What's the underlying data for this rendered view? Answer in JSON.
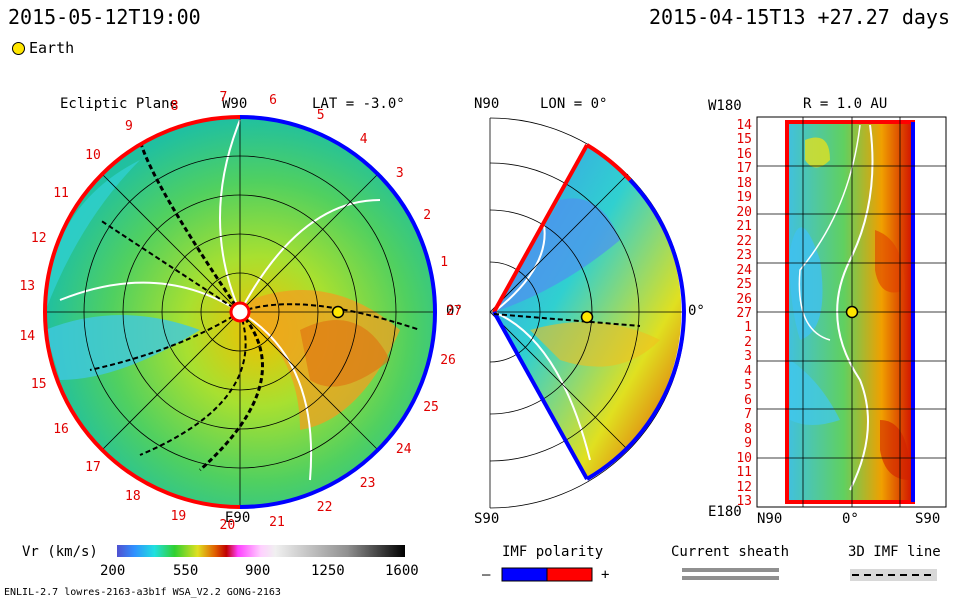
{
  "header": {
    "sim_time": "2015-05-12T19:00",
    "ref_time": "2015-04-15T13 +27.27 days"
  },
  "legend": {
    "earth_label": "Earth"
  },
  "panels": {
    "ecliptic": {
      "title": "Ecliptic Plane",
      "top_label": "W90",
      "bottom_label": "E90",
      "lat_label": "LAT = -3.0°",
      "zero_label": "0°",
      "carrington_ticks": [
        "20",
        "21",
        "22",
        "23",
        "24",
        "25",
        "26",
        "27",
        "1",
        "2",
        "3",
        "4",
        "5",
        "6",
        "7",
        "8",
        "9",
        "10",
        "11",
        "12",
        "13",
        "14",
        "15",
        "16",
        "17",
        "18",
        "19"
      ]
    },
    "meridional": {
      "top_label": "N90",
      "bottom_label": "S90",
      "lon_label": "LON = 0°",
      "zero_label": "0°"
    },
    "radial": {
      "title": "R = 1.0 AU",
      "top_left": "W180",
      "bottom_left": "E180",
      "x_ticks": [
        "N90",
        "0°",
        "S90"
      ],
      "rotation_ticks": [
        "14",
        "15",
        "16",
        "17",
        "18",
        "19",
        "20",
        "21",
        "22",
        "23",
        "24",
        "25",
        "26",
        "27",
        "1",
        "2",
        "3",
        "4",
        "5",
        "6",
        "7",
        "8",
        "9",
        "10",
        "11",
        "12",
        "13"
      ]
    }
  },
  "colorbar": {
    "label": "Vr (km/s)",
    "ticks": [
      "200",
      "550",
      "900",
      "1250",
      "1600"
    ],
    "range": [
      200,
      1600
    ]
  },
  "imf": {
    "title": "IMF polarity",
    "minus": "–",
    "plus": "+",
    "colors": {
      "negative": "#0000ff",
      "positive": "#ff0000"
    }
  },
  "current_sheath": {
    "label": "Current sheath"
  },
  "imf_line": {
    "label": "3D IMF line"
  },
  "footer": {
    "model": "ENLIL-2.7 lowres-2163-a3b1f WSA_V2.2 GONG-2163"
  },
  "chart_data": {
    "type": "heatmap",
    "quantity": "Radial solar wind speed Vr",
    "units": "km/s",
    "color_range": [
      200,
      1600
    ],
    "earth_position": {
      "longitude_deg": 0,
      "r_au": 1.0,
      "carrington_rotation_tick": "27"
    },
    "panels": [
      "Ecliptic Plane (LAT = -3.0°)",
      "Meridional (LON = 0°)",
      "R = 1.0 AU"
    ]
  }
}
